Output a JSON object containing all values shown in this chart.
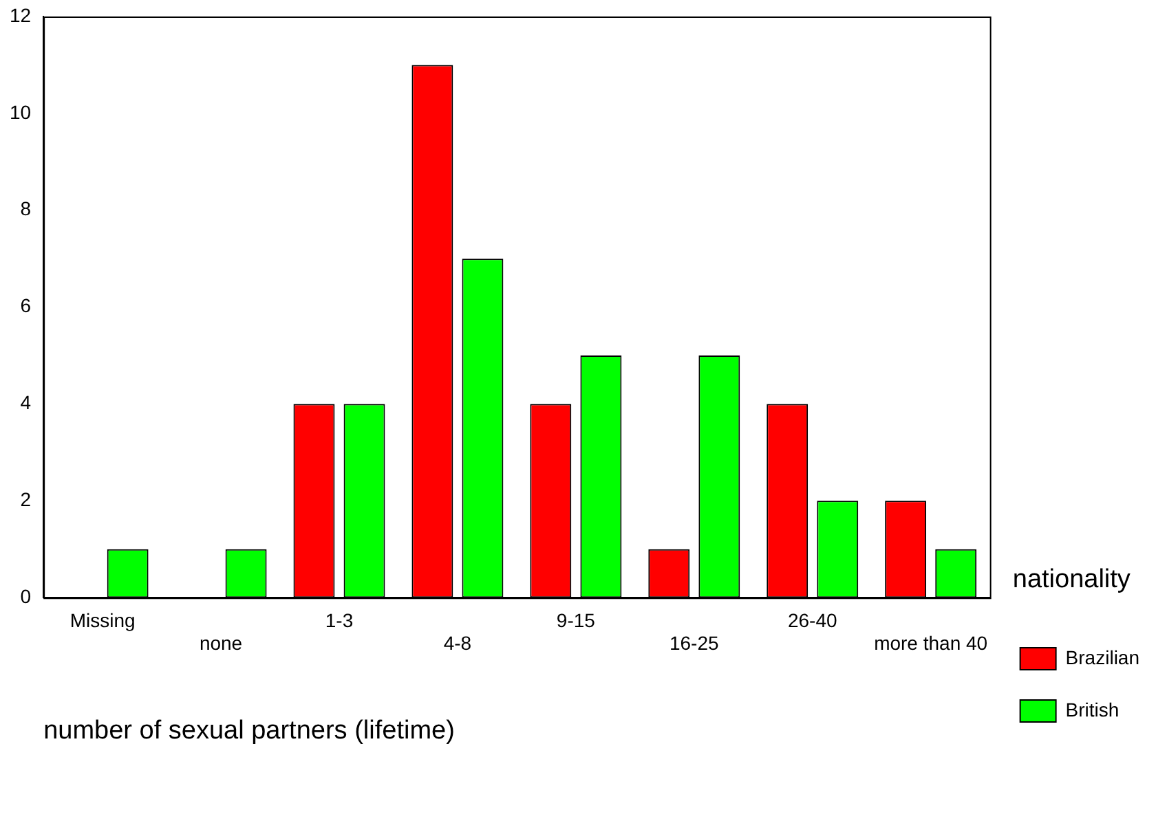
{
  "chart_data": {
    "type": "bar",
    "xlabel": "number of sexual partners (lifetime)",
    "legend_title": "nationality",
    "legend": "right",
    "grid": false,
    "categories": [
      "Missing",
      "none",
      "1-3",
      "4-8",
      "9-15",
      "16-25",
      "26-40",
      "more than 40"
    ],
    "series": [
      {
        "name": "Brazilian",
        "color": "#ff0000",
        "values": [
          0,
          0,
          4,
          11,
          4,
          1,
          4,
          2
        ]
      },
      {
        "name": "British",
        "color": "#00ff00",
        "values": [
          1,
          1,
          4,
          7,
          5,
          5,
          2,
          1
        ]
      }
    ],
    "ylim": [
      0,
      12
    ],
    "yticks": [
      0,
      2,
      4,
      6,
      8,
      10,
      12
    ]
  }
}
